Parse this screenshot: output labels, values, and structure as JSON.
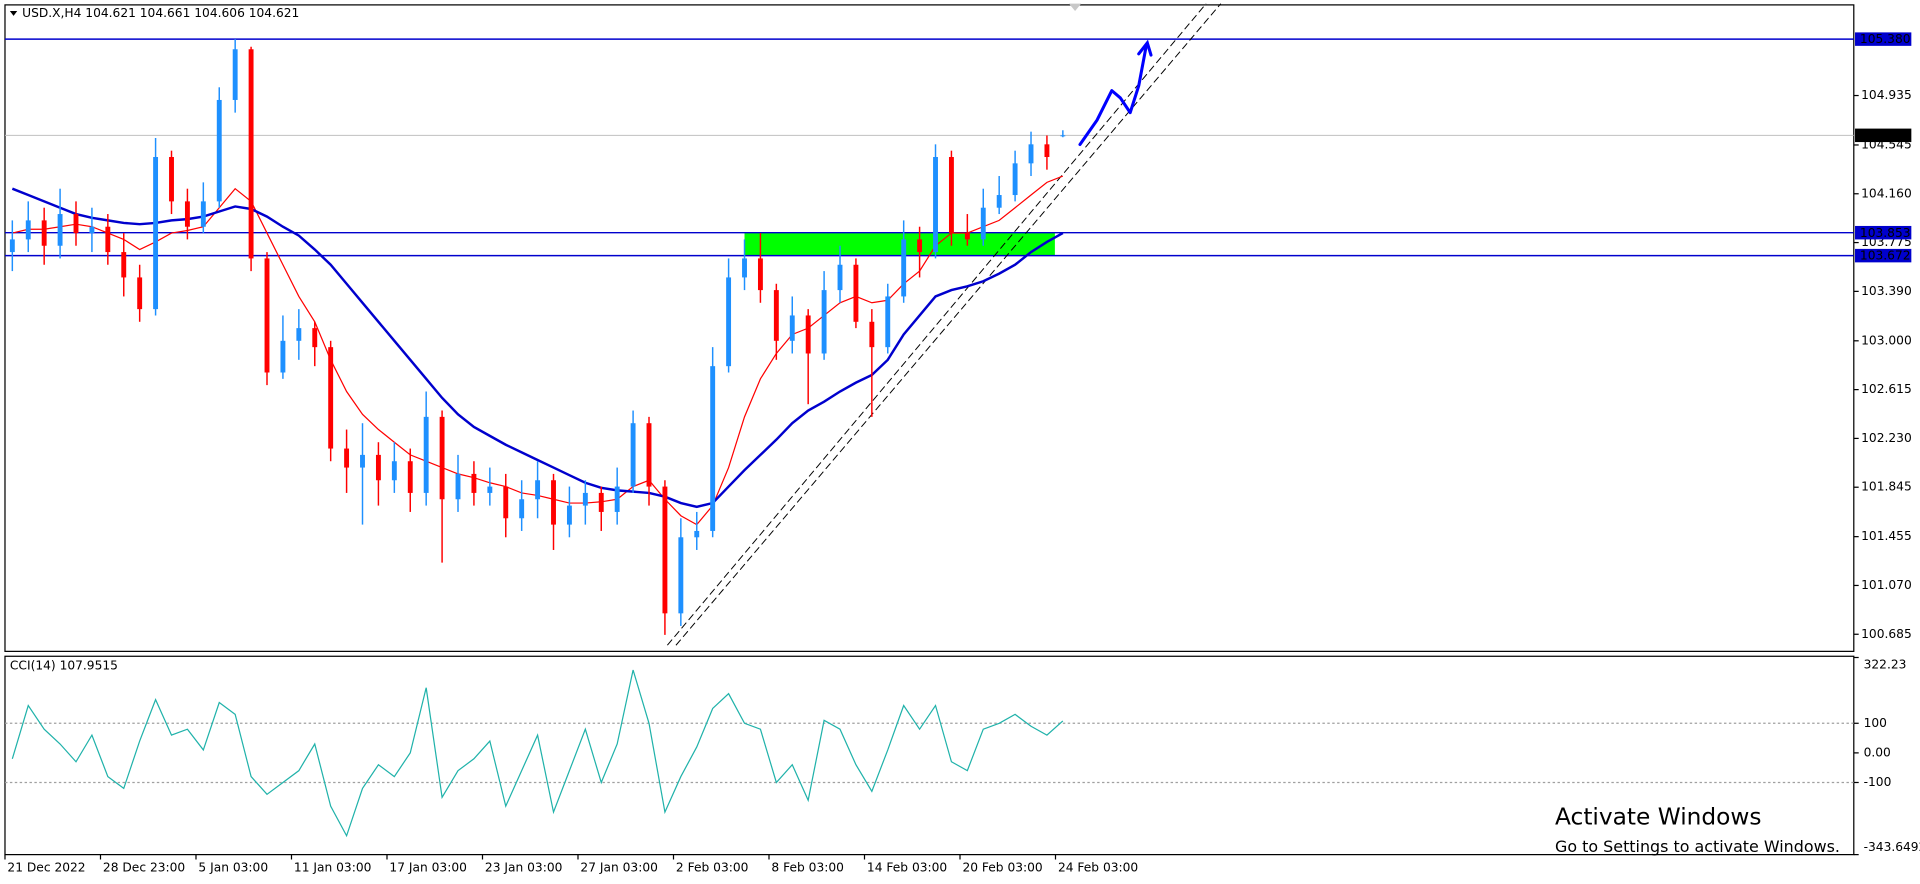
{
  "chart_data": [
    {
      "type": "candlestick",
      "title": "USD.X,H4 104.621 104.661 104.606 104.621",
      "up_color": "#1e90ff",
      "down_color": "#ff0000",
      "open": [
        103.7,
        103.8,
        103.95,
        103.75,
        104.0,
        103.85,
        103.9,
        103.7,
        103.5,
        103.25,
        104.45,
        104.1,
        103.9,
        104.1,
        104.9,
        105.3,
        103.65,
        102.75,
        103.0,
        103.1,
        102.95,
        102.15,
        102.0,
        102.1,
        101.9,
        102.05,
        101.8,
        102.4,
        101.75,
        101.95,
        101.8,
        101.85,
        101.6,
        101.75,
        101.9,
        101.55,
        101.7,
        101.8,
        101.65,
        101.85,
        102.35,
        101.85,
        100.85,
        101.45,
        101.5,
        102.8,
        103.5,
        103.65,
        103.4,
        103.0,
        103.2,
        102.9,
        103.4,
        103.6,
        103.15,
        102.95,
        103.35,
        103.8,
        103.7,
        104.45,
        103.85,
        103.8,
        104.05,
        104.15,
        104.4,
        104.55,
        104.621
      ],
      "high": [
        103.95,
        104.1,
        104.05,
        104.2,
        104.1,
        104.05,
        104.0,
        103.85,
        103.6,
        104.6,
        104.5,
        104.2,
        104.25,
        105.0,
        105.38,
        105.32,
        103.7,
        103.2,
        103.25,
        103.15,
        103.0,
        102.3,
        102.35,
        102.2,
        102.2,
        102.15,
        102.6,
        102.45,
        102.1,
        102.05,
        102.0,
        101.95,
        101.9,
        102.05,
        101.95,
        101.85,
        101.9,
        101.85,
        102.0,
        102.45,
        102.4,
        101.9,
        101.6,
        101.65,
        102.95,
        103.65,
        103.8,
        103.85,
        103.45,
        103.35,
        103.25,
        103.55,
        103.75,
        103.65,
        103.25,
        103.45,
        103.95,
        103.9,
        104.55,
        104.5,
        104.0,
        104.2,
        104.3,
        104.5,
        104.65,
        104.62,
        104.661
      ],
      "low": [
        103.55,
        103.7,
        103.6,
        103.65,
        103.75,
        103.7,
        103.6,
        103.35,
        103.15,
        103.2,
        104.0,
        103.8,
        103.85,
        104.05,
        104.8,
        103.55,
        102.65,
        102.7,
        102.85,
        102.8,
        102.05,
        101.8,
        101.55,
        101.7,
        101.8,
        101.65,
        101.7,
        101.25,
        101.65,
        101.7,
        101.7,
        101.45,
        101.5,
        101.6,
        101.35,
        101.45,
        101.55,
        101.5,
        101.55,
        101.8,
        101.7,
        100.68,
        100.75,
        101.35,
        101.45,
        102.75,
        103.4,
        103.3,
        102.85,
        102.9,
        102.5,
        102.85,
        103.3,
        103.1,
        102.4,
        102.9,
        103.3,
        103.5,
        103.65,
        103.75,
        103.75,
        103.75,
        104.0,
        104.1,
        104.3,
        104.35,
        104.606
      ],
      "close": [
        103.8,
        103.95,
        103.75,
        104.0,
        103.85,
        103.9,
        103.7,
        103.5,
        103.25,
        104.45,
        104.1,
        103.9,
        104.1,
        104.9,
        105.3,
        103.65,
        102.75,
        103.0,
        103.1,
        102.95,
        102.15,
        102.0,
        102.1,
        101.9,
        102.05,
        101.8,
        102.4,
        101.75,
        101.95,
        101.8,
        101.85,
        101.6,
        101.75,
        101.9,
        101.55,
        101.7,
        101.8,
        101.65,
        101.85,
        102.35,
        101.85,
        100.85,
        101.45,
        101.5,
        102.8,
        103.5,
        103.65,
        103.4,
        103.0,
        103.2,
        102.9,
        103.4,
        103.6,
        103.15,
        102.95,
        103.35,
        103.8,
        103.7,
        104.45,
        103.85,
        103.8,
        104.05,
        104.15,
        104.4,
        104.55,
        104.45,
        104.621
      ],
      "series": [
        {
          "color": "#ff0000",
          "values": [
            103.85,
            103.88,
            103.88,
            103.9,
            103.92,
            103.9,
            103.85,
            103.8,
            103.72,
            103.78,
            103.85,
            103.87,
            103.9,
            104.05,
            104.2,
            104.1,
            103.85,
            103.6,
            103.35,
            103.15,
            102.85,
            102.6,
            102.42,
            102.3,
            102.2,
            102.1,
            102.05,
            102.0,
            101.95,
            101.92,
            101.88,
            101.85,
            101.8,
            101.78,
            101.75,
            101.72,
            101.72,
            101.73,
            101.75,
            101.85,
            101.9,
            101.75,
            101.62,
            101.55,
            101.7,
            102.0,
            102.4,
            102.7,
            102.9,
            103.05,
            103.1,
            103.2,
            103.3,
            103.35,
            103.3,
            103.32,
            103.45,
            103.55,
            103.75,
            103.85,
            103.85,
            103.9,
            103.95,
            104.05,
            104.15,
            104.25,
            104.3
          ]
        },
        {
          "color": "#0000cd",
          "values": [
            104.2,
            104.15,
            104.1,
            104.05,
            104.0,
            103.97,
            103.95,
            103.93,
            103.92,
            103.93,
            103.95,
            103.96,
            103.98,
            104.02,
            104.06,
            104.04,
            103.98,
            103.9,
            103.83,
            103.72,
            103.6,
            103.45,
            103.3,
            103.15,
            103.0,
            102.85,
            102.7,
            102.55,
            102.42,
            102.32,
            102.25,
            102.18,
            102.12,
            102.06,
            102.0,
            101.94,
            101.88,
            101.84,
            101.82,
            101.81,
            101.8,
            101.77,
            101.72,
            101.69,
            101.72,
            101.85,
            101.98,
            102.1,
            102.22,
            102.35,
            102.45,
            102.52,
            102.6,
            102.67,
            102.73,
            102.85,
            103.05,
            103.2,
            103.35,
            103.4,
            103.43,
            103.47,
            103.53,
            103.6,
            103.7,
            103.78,
            103.85
          ]
        }
      ],
      "ylim": [
        100.55,
        105.65
      ],
      "yticks": [
        104.935,
        104.545,
        {
          "value": 104.16,
          "label": "104.160"
        },
        103.775,
        {
          "value": 103.39,
          "label": "103.390"
        },
        {
          "value": 103,
          "label": "103.000"
        },
        102.615,
        {
          "value": 102.23,
          "label": "102.230"
        },
        101.845,
        101.455,
        {
          "value": 101.07,
          "label": "101.070"
        },
        100.685
      ],
      "xticks": [
        {
          "value": 0,
          "label": "21 Dec 2022"
        },
        {
          "value": 6,
          "label": "28 Dec 23:00"
        },
        {
          "value": 12,
          "label": "5 Jan 03:00"
        },
        {
          "value": 18,
          "label": "11 Jan 03:00"
        },
        {
          "value": 24,
          "label": "17 Jan 03:00"
        },
        {
          "value": 30,
          "label": "23 Jan 03:00"
        },
        {
          "value": 36,
          "label": "27 Jan 03:00"
        },
        {
          "value": 42,
          "label": "2 Feb 03:00"
        },
        {
          "value": 48,
          "label": "8 Feb 03:00"
        },
        {
          "value": 54,
          "label": "14 Feb 03:00"
        },
        {
          "value": 60,
          "label": "20 Feb 03:00"
        },
        {
          "value": 66,
          "label": "24 Feb 03:00"
        }
      ],
      "hlines": [
        {
          "value": 105.38,
          "label": "105.380",
          "color": "#0000cd"
        },
        {
          "value": 103.853,
          "label": "103.853",
          "color": "#0000cd"
        },
        {
          "value": 103.672,
          "label": "103.672",
          "color": "#0000cd"
        },
        {
          "value": 104.621,
          "label": "104.621",
          "color": "#000000"
        }
      ],
      "zone": {
        "x": [
          46,
          65.5
        ],
        "y": [
          103.672,
          103.853
        ],
        "color": "#00ff00"
      }
    },
    {
      "type": "line",
      "title": "CCI(14) 107.9515",
      "color": "#20b2aa",
      "values": [
        -20,
        160,
        80,
        30,
        -30,
        60,
        -80,
        -120,
        40,
        180,
        60,
        80,
        10,
        170,
        130,
        -80,
        -140,
        -100,
        -60,
        30,
        -180,
        -280,
        -120,
        -40,
        -80,
        0,
        220,
        -150,
        -60,
        -20,
        40,
        -180,
        -60,
        60,
        -200,
        -60,
        80,
        -100,
        30,
        280,
        100,
        -200,
        -80,
        20,
        150,
        200,
        100,
        80,
        -100,
        -40,
        -160,
        110,
        80,
        -40,
        -130,
        10,
        160,
        80,
        160,
        -30,
        -60,
        80,
        100,
        130,
        90,
        60,
        107.9515
      ],
      "ylim": [
        -343.6492,
        322.23
      ],
      "yticks": [
        322.23,
        100,
        {
          "value": 0,
          "label": "0.00"
        },
        -100,
        -343.6492
      ],
      "levels": [
        100,
        -100
      ]
    }
  ],
  "watermark": {
    "title": "Activate Windows",
    "subtitle": "Go to Settings to activate Windows."
  }
}
